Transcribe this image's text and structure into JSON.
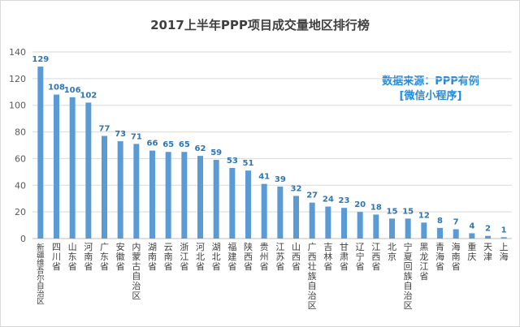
{
  "chart_data": {
    "type": "bar",
    "title": "2017上半年PPP项目成交量地区排行榜",
    "source_note": [
      "数据来源：PPP有例",
      "[微信小程序]"
    ],
    "categories": [
      "新疆维吾尔自治区",
      "四川省",
      "山东省",
      "河南省",
      "广东省",
      "安徽省",
      "内蒙古自治区",
      "湖南省",
      "云南省",
      "浙江省",
      "河北省",
      "湖北省",
      "福建省",
      "陕西省",
      "贵州省",
      "江苏省",
      "山西省",
      "广西壮族自治区",
      "吉林省",
      "甘肃省",
      "辽宁省",
      "江西省",
      "北京",
      "宁夏回族自治区",
      "黑龙江省",
      "青海省",
      "海南省",
      "重庆",
      "天津",
      "上海"
    ],
    "values": [
      129,
      108,
      106,
      102,
      77,
      73,
      71,
      66,
      65,
      65,
      62,
      59,
      53,
      51,
      41,
      39,
      32,
      27,
      24,
      23,
      20,
      18,
      15,
      15,
      12,
      8,
      7,
      4,
      2,
      1
    ],
    "ylim": [
      0,
      140
    ],
    "yticks": [
      0,
      20,
      40,
      60,
      80,
      100,
      120,
      140
    ],
    "grid": true,
    "bar_color": "#5b9bd5",
    "label_color": "#2e75b6",
    "source_color": "#1f8be0"
  }
}
